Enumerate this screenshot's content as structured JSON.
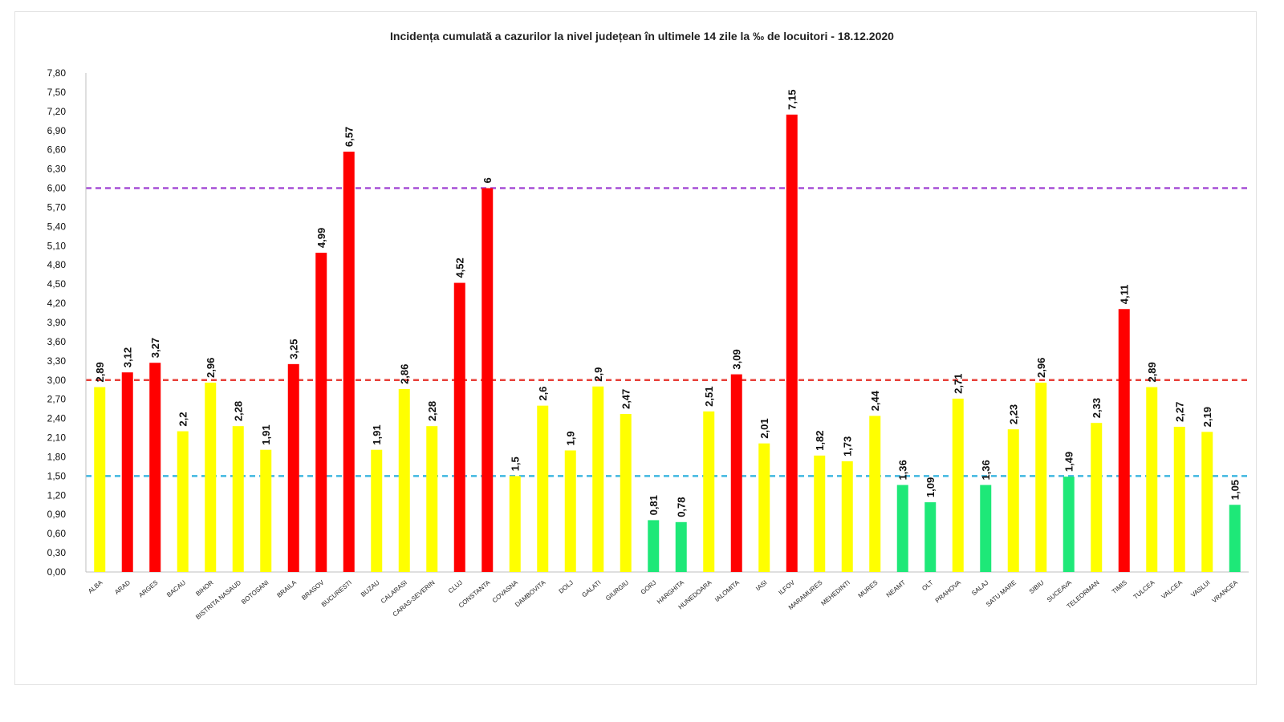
{
  "chart_data": {
    "type": "bar",
    "title": "Incidența cumulată a cazurilor la nivel județean în ultimele 14 zile   la ‰ de locuitori  - 18.12.2020",
    "categories": [
      "ALBA",
      "ARAD",
      "ARGES",
      "BACAU",
      "BIHOR",
      "BISTRITA NASAUD",
      "BOTOSANI",
      "BRAILA",
      "BRASOV",
      "BUCURESTI",
      "BUZAU",
      "CALARASI",
      "CARAS-SEVERIN",
      "CLUJ",
      "CONSTANTA",
      "COVASNA",
      "DAMBOVITA",
      "DOLJ",
      "GALATI",
      "GIURGIU",
      "GORJ",
      "HARGHITA",
      "HUNEDOARA",
      "IALOMITA",
      "IASI",
      "ILFOV",
      "MARAMURES",
      "MEHEDINTI",
      "MURES",
      "NEAMT",
      "OLT",
      "PRAHOVA",
      "SALAJ",
      "SATU MARE",
      "SIBIU",
      "SUCEAVA",
      "TELEORMAN",
      "TIMIS",
      "TULCEA",
      "VALCEA",
      "VASLUI",
      "VRANCEA"
    ],
    "values": [
      2.89,
      3.12,
      3.27,
      2.2,
      2.96,
      2.28,
      1.91,
      3.25,
      4.99,
      6.57,
      1.91,
      2.86,
      2.28,
      4.52,
      6,
      1.5,
      2.6,
      1.9,
      2.9,
      2.47,
      0.81,
      0.78,
      2.51,
      3.09,
      2.01,
      7.15,
      1.82,
      1.73,
      2.44,
      1.36,
      1.09,
      2.71,
      1.36,
      2.23,
      2.96,
      1.49,
      2.33,
      4.11,
      2.89,
      2.27,
      2.19,
      1.05
    ],
    "value_labels": [
      "2,89",
      "3,12",
      "3,27",
      "2,2",
      "2,96",
      "2,28",
      "1,91",
      "3,25",
      "4,99",
      "6,57",
      "1,91",
      "2,86",
      "2,28",
      "4,52",
      "6",
      "1,5",
      "2,6",
      "1,9",
      "2,9",
      "2,47",
      "0,81",
      "0,78",
      "2,51",
      "3,09",
      "2,01",
      "7,15",
      "1,82",
      "1,73",
      "2,44",
      "1,36",
      "1,09",
      "2,71",
      "1,36",
      "2,23",
      "2,96",
      "1,49",
      "2,33",
      "4,11",
      "2,89",
      "2,27",
      "2,19",
      "1,05"
    ],
    "bar_colors": [
      "yellow",
      "red",
      "red",
      "yellow",
      "yellow",
      "yellow",
      "yellow",
      "red",
      "red",
      "red",
      "yellow",
      "yellow",
      "yellow",
      "red",
      "red",
      "yellow",
      "yellow",
      "yellow",
      "yellow",
      "yellow",
      "green",
      "green",
      "yellow",
      "red",
      "yellow",
      "red",
      "yellow",
      "yellow",
      "yellow",
      "green",
      "green",
      "yellow",
      "green",
      "yellow",
      "yellow",
      "green",
      "yellow",
      "red",
      "yellow",
      "yellow",
      "yellow",
      "green"
    ],
    "ylim": [
      0,
      7.8
    ],
    "ytick_step": 0.3,
    "ytick_labels": [
      "0,00",
      "0,30",
      "0,60",
      "0,90",
      "1,20",
      "1,50",
      "1,80",
      "2,10",
      "2,40",
      "2,70",
      "3,00",
      "3,30",
      "3,60",
      "3,90",
      "4,20",
      "4,50",
      "4,80",
      "5,10",
      "5,40",
      "5,70",
      "6,00",
      "6,30",
      "6,60",
      "6,90",
      "7,20",
      "7,50",
      "7,80"
    ],
    "threshold_lines": [
      {
        "value": 6.0,
        "color": "#a64fd6"
      },
      {
        "value": 3.0,
        "color": "#e8403a"
      },
      {
        "value": 1.5,
        "color": "#3fb7e0"
      }
    ],
    "colors": {
      "red": "#ff0000",
      "yellow": "#ffff00",
      "green": "#1ee878"
    },
    "grid": false,
    "legend": "none",
    "xlabel": "",
    "ylabel": ""
  }
}
